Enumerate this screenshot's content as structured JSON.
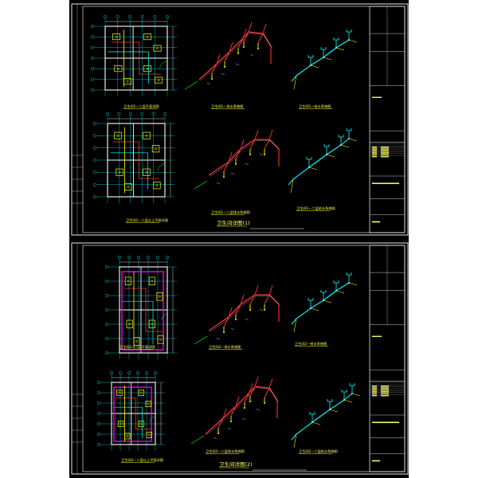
{
  "sheets": [
    {
      "id": "1",
      "title_main": "卫生间详图(1)",
      "views": [
        {
          "key": "plan_a",
          "caption": "卫生间1—二层平面详图"
        },
        {
          "key": "drain_a",
          "caption": "卫生间1—排水系统图"
        },
        {
          "key": "supply_a",
          "caption": "卫生间1—给水系统图"
        },
        {
          "key": "plan_b",
          "caption": "卫生间1—二层以上平面详图"
        },
        {
          "key": "drain_b",
          "caption": "卫生间1—二层排水系统图"
        },
        {
          "key": "supply_b",
          "caption": "卫生间1—二层给水系统图"
        }
      ]
    },
    {
      "id": "2",
      "title_main": "卫生间详图(2)",
      "views": [
        {
          "key": "plan_a",
          "caption": "卫生间2—二层平面详图"
        },
        {
          "key": "drain_a",
          "caption": "卫生间2—排水系统图"
        },
        {
          "key": "supply_a",
          "caption": "卫生间2—给水系统图"
        },
        {
          "key": "plan_b",
          "caption": "卫生间2—二层以上平面详图"
        },
        {
          "key": "drain_b",
          "caption": "卫生间2—二层排水系统图"
        },
        {
          "key": "supply_b",
          "caption": "卫生间2—二层给水系统图"
        }
      ]
    }
  ],
  "colors": {
    "background": "#000000",
    "frame": "#ffffff",
    "grid": "#00ffff",
    "pipe_drain": "#ff3333",
    "pipe_supply": "#00ffff",
    "fixture": "#ffff00",
    "wall": "#ff00ff",
    "text": "#ffff66",
    "accent": "#ffff00"
  }
}
